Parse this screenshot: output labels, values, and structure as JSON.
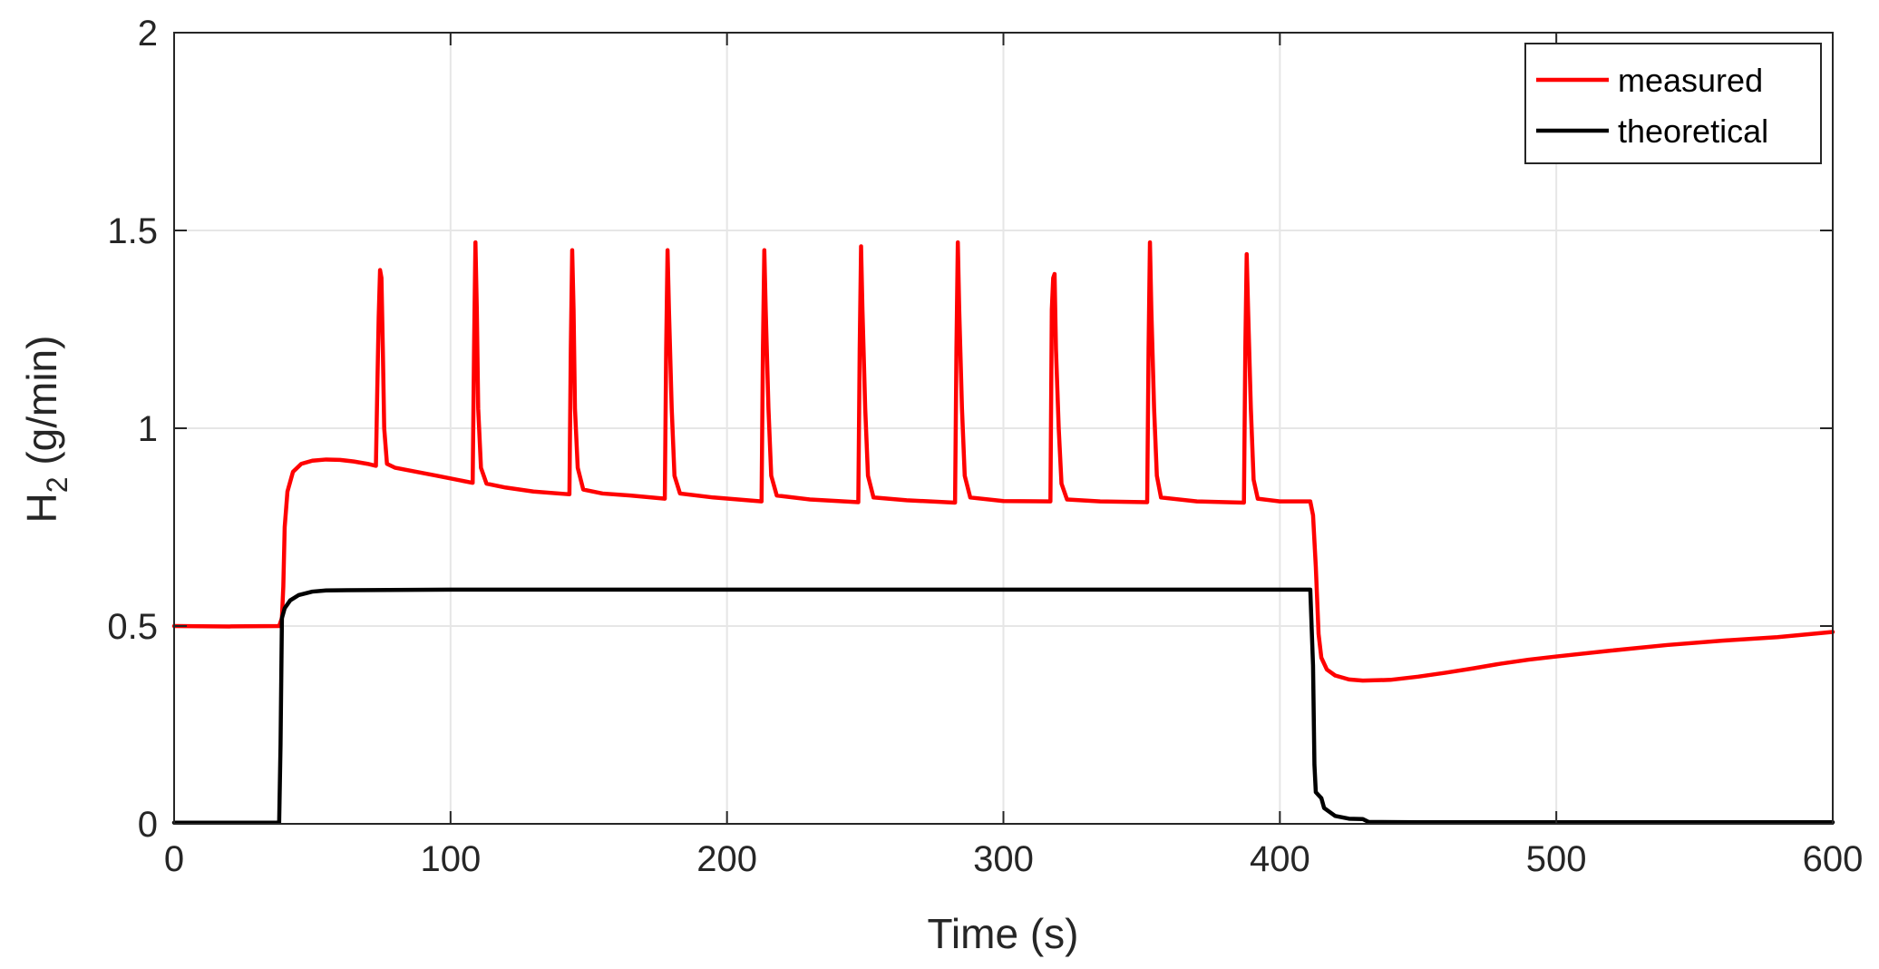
{
  "chart_data": {
    "type": "line",
    "xlabel": "Time (s)",
    "ylabel_main": "H",
    "ylabel_sub": "2",
    "ylabel_rest": " (g/min)",
    "xlim": [
      0,
      600
    ],
    "ylim": [
      0,
      2
    ],
    "x_ticks": [
      0,
      100,
      200,
      300,
      400,
      500,
      600
    ],
    "y_ticks": [
      0,
      0.5,
      1,
      1.5,
      2
    ],
    "x_tick_labels": [
      "0",
      "100",
      "200",
      "300",
      "400",
      "500",
      "600"
    ],
    "y_tick_labels": [
      "0",
      "0.5",
      "1",
      "1.5",
      "2"
    ],
    "grid": true,
    "legend_position": "top-right",
    "series": [
      {
        "name": "measured",
        "color": "#ff0000",
        "points": [
          [
            0,
            0.5
          ],
          [
            20,
            0.499
          ],
          [
            38,
            0.5
          ],
          [
            39,
            0.52
          ],
          [
            39.5,
            0.6
          ],
          [
            40,
            0.75
          ],
          [
            41,
            0.84
          ],
          [
            43,
            0.89
          ],
          [
            46,
            0.91
          ],
          [
            50,
            0.918
          ],
          [
            55,
            0.921
          ],
          [
            60,
            0.92
          ],
          [
            65,
            0.916
          ],
          [
            70,
            0.91
          ],
          [
            73,
            0.905
          ],
          [
            73.5,
            1.1
          ],
          [
            74,
            1.28
          ],
          [
            74.5,
            1.4
          ],
          [
            75,
            1.38
          ],
          [
            75.5,
            1.2
          ],
          [
            76,
            1.0
          ],
          [
            77,
            0.91
          ],
          [
            80,
            0.9
          ],
          [
            95,
            0.88
          ],
          [
            108,
            0.862
          ],
          [
            108.5,
            1.2
          ],
          [
            109,
            1.47
          ],
          [
            109.5,
            1.3
          ],
          [
            110,
            1.05
          ],
          [
            111,
            0.9
          ],
          [
            113,
            0.86
          ],
          [
            120,
            0.85
          ],
          [
            130,
            0.84
          ],
          [
            143,
            0.833
          ],
          [
            143.5,
            1.2
          ],
          [
            144,
            1.45
          ],
          [
            144.5,
            1.3
          ],
          [
            145,
            1.05
          ],
          [
            146,
            0.9
          ],
          [
            148,
            0.845
          ],
          [
            155,
            0.835
          ],
          [
            165,
            0.83
          ],
          [
            177.5,
            0.822
          ],
          [
            178,
            1.2
          ],
          [
            178.5,
            1.45
          ],
          [
            179,
            1.3
          ],
          [
            180,
            1.05
          ],
          [
            181,
            0.88
          ],
          [
            183,
            0.835
          ],
          [
            195,
            0.825
          ],
          [
            212.5,
            0.815
          ],
          [
            213,
            1.2
          ],
          [
            213.5,
            1.45
          ],
          [
            214,
            1.3
          ],
          [
            215,
            1.05
          ],
          [
            216,
            0.88
          ],
          [
            218,
            0.83
          ],
          [
            230,
            0.82
          ],
          [
            247.5,
            0.813
          ],
          [
            248,
            1.2
          ],
          [
            248.5,
            1.46
          ],
          [
            249,
            1.3
          ],
          [
            250,
            1.05
          ],
          [
            251,
            0.88
          ],
          [
            253,
            0.825
          ],
          [
            265,
            0.818
          ],
          [
            282.5,
            0.812
          ],
          [
            283,
            1.2
          ],
          [
            283.5,
            1.47
          ],
          [
            284,
            1.3
          ],
          [
            285,
            1.05
          ],
          [
            286,
            0.88
          ],
          [
            288,
            0.825
          ],
          [
            300,
            0.816
          ],
          [
            317,
            0.815
          ],
          [
            317.5,
            1.3
          ],
          [
            318,
            1.38
          ],
          [
            318.5,
            1.39
          ],
          [
            319,
            1.2
          ],
          [
            320,
            1.0
          ],
          [
            321,
            0.86
          ],
          [
            323,
            0.82
          ],
          [
            335,
            0.815
          ],
          [
            352,
            0.813
          ],
          [
            352.5,
            1.2
          ],
          [
            353,
            1.47
          ],
          [
            353.5,
            1.3
          ],
          [
            354.5,
            1.05
          ],
          [
            355.5,
            0.88
          ],
          [
            357,
            0.825
          ],
          [
            370,
            0.815
          ],
          [
            387,
            0.812
          ],
          [
            387.5,
            1.2
          ],
          [
            388,
            1.44
          ],
          [
            388.5,
            1.3
          ],
          [
            389.5,
            1.05
          ],
          [
            390.5,
            0.87
          ],
          [
            392,
            0.822
          ],
          [
            400,
            0.815
          ],
          [
            411,
            0.815
          ],
          [
            412,
            0.78
          ],
          [
            413,
            0.65
          ],
          [
            414,
            0.48
          ],
          [
            415,
            0.42
          ],
          [
            417,
            0.39
          ],
          [
            420,
            0.375
          ],
          [
            425,
            0.365
          ],
          [
            430,
            0.362
          ],
          [
            440,
            0.364
          ],
          [
            450,
            0.372
          ],
          [
            460,
            0.382
          ],
          [
            470,
            0.393
          ],
          [
            480,
            0.405
          ],
          [
            490,
            0.415
          ],
          [
            500,
            0.423
          ],
          [
            520,
            0.438
          ],
          [
            540,
            0.452
          ],
          [
            560,
            0.463
          ],
          [
            580,
            0.472
          ],
          [
            600,
            0.485
          ]
        ]
      },
      {
        "name": "theoretical",
        "color": "#000000",
        "points": [
          [
            0,
            0.003
          ],
          [
            38,
            0.003
          ],
          [
            38.5,
            0.2
          ],
          [
            39,
            0.52
          ],
          [
            40,
            0.545
          ],
          [
            42,
            0.565
          ],
          [
            45,
            0.578
          ],
          [
            50,
            0.587
          ],
          [
            55,
            0.59
          ],
          [
            70,
            0.591
          ],
          [
            100,
            0.592
          ],
          [
            150,
            0.592
          ],
          [
            200,
            0.592
          ],
          [
            250,
            0.592
          ],
          [
            300,
            0.592
          ],
          [
            350,
            0.592
          ],
          [
            400,
            0.592
          ],
          [
            411,
            0.592
          ],
          [
            412,
            0.4
          ],
          [
            412.5,
            0.15
          ],
          [
            413,
            0.08
          ],
          [
            415,
            0.065
          ],
          [
            416,
            0.04
          ],
          [
            418,
            0.03
          ],
          [
            420,
            0.02
          ],
          [
            425,
            0.013
          ],
          [
            430,
            0.012
          ],
          [
            432,
            0.005
          ],
          [
            450,
            0.004
          ],
          [
            500,
            0.004
          ],
          [
            600,
            0.004
          ]
        ]
      }
    ]
  }
}
